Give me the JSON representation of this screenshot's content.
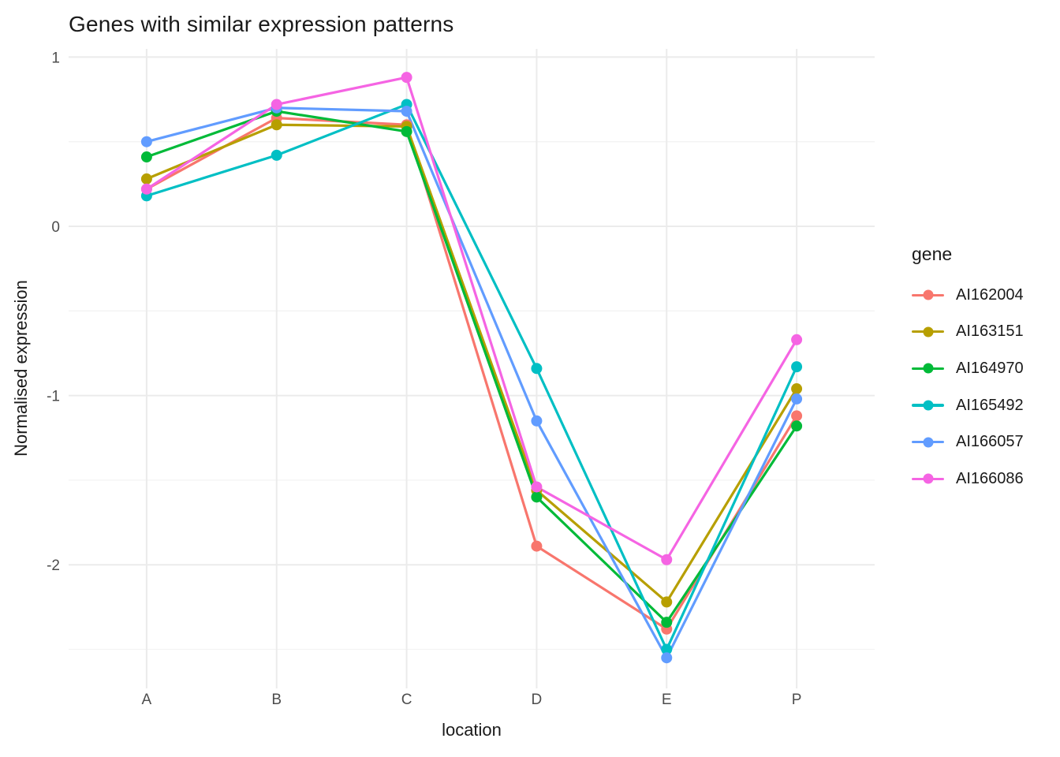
{
  "chart_data": {
    "type": "line",
    "title": "Genes with similar expression patterns",
    "xlabel": "location",
    "ylabel": "Normalised expression",
    "legend_title": "gene",
    "legend_position": "right",
    "grid": true,
    "categories": [
      "A",
      "B",
      "C",
      "D",
      "E",
      "P"
    ],
    "y_major_ticks": [
      1,
      0,
      -1,
      -2
    ],
    "y_minor_ticks": [
      0.5,
      -0.5,
      -1.5,
      -2.5
    ],
    "ylim": [
      -2.72,
      1.05
    ],
    "series": [
      {
        "name": "AI162004",
        "color": "#F8766D",
        "values": [
          0.22,
          0.64,
          0.6,
          -1.89,
          -2.38,
          -1.12
        ]
      },
      {
        "name": "AI163151",
        "color": "#B79F00",
        "values": [
          0.28,
          0.6,
          0.59,
          -1.56,
          -2.22,
          -0.96
        ]
      },
      {
        "name": "AI164970",
        "color": "#00BA38",
        "values": [
          0.41,
          0.68,
          0.56,
          -1.6,
          -2.34,
          -1.18
        ]
      },
      {
        "name": "AI165492",
        "color": "#00BFC4",
        "values": [
          0.18,
          0.42,
          0.72,
          -0.84,
          -2.5,
          -0.83
        ]
      },
      {
        "name": "AI166057",
        "color": "#619CFF",
        "values": [
          0.5,
          0.7,
          0.68,
          -1.15,
          -2.55,
          -1.02
        ]
      },
      {
        "name": "AI166086",
        "color": "#F564E3",
        "values": [
          0.22,
          0.72,
          0.88,
          -1.54,
          -1.97,
          -0.67
        ]
      }
    ],
    "style": {
      "background": "#FFFFFF",
      "major_grid_color": "#EBEBEB",
      "minor_grid_color": "#F3F3F3",
      "tick_label_color": "#4D4D4D",
      "text_color": "#1A1A1A",
      "line_width": 3.2,
      "point_radius": 7
    }
  }
}
